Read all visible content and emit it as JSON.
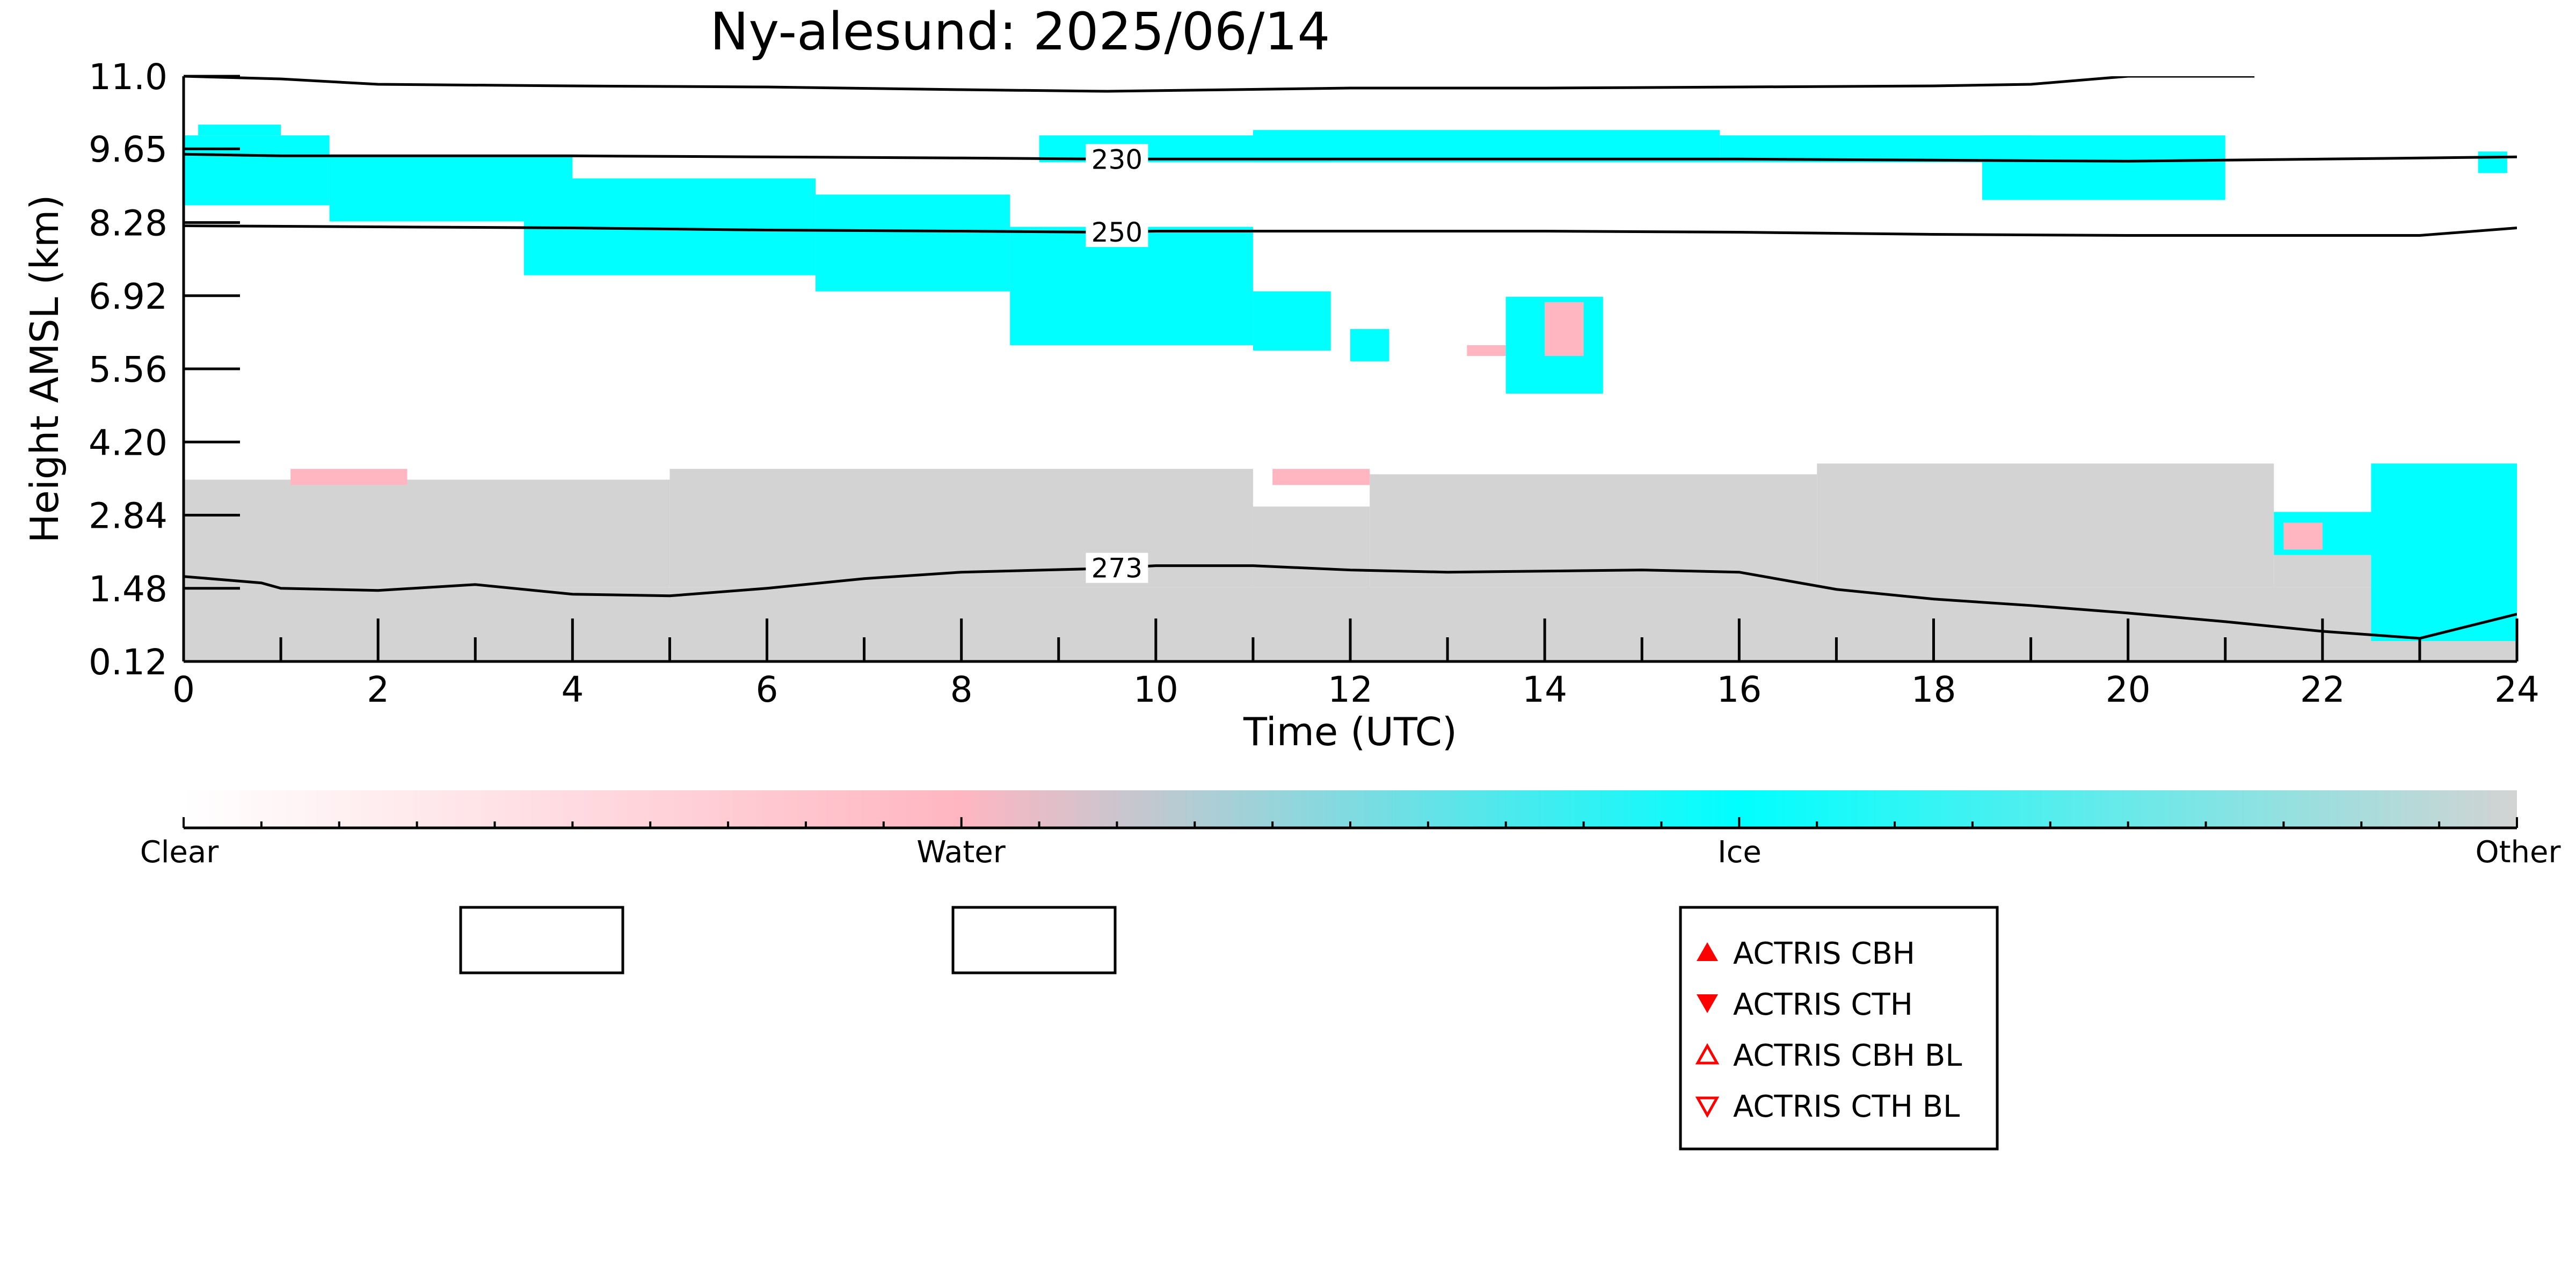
{
  "chart_data": {
    "type": "heatmap",
    "title": "Ny-alesund: 2025/06/14",
    "xlabel": "Time (UTC)",
    "ylabel": "Height AMSL (km)",
    "xlim": [
      0,
      24
    ],
    "ylim": [
      0.12,
      11.0
    ],
    "x_ticks": [
      "0",
      "2",
      "4",
      "6",
      "8",
      "10",
      "12",
      "14",
      "16",
      "18",
      "20",
      "22",
      "24"
    ],
    "y_ticks": [
      "0.12",
      "1.48",
      "2.84",
      "4.20",
      "5.56",
      "6.92",
      "8.28",
      "9.65",
      "11.0"
    ],
    "colorbar": {
      "labels": [
        "Clear",
        "Water",
        "Ice",
        "Other"
      ],
      "colors": [
        "#ffffff",
        "#ffb6c1",
        "#00ffff",
        "#d3d3d3"
      ]
    },
    "class_colors": {
      "clear": "#ffffff",
      "water": "#ffb6c1",
      "ice": "#00ffff",
      "other": "#d3d3d3"
    },
    "isotherms": [
      {
        "label": "230",
        "x": [
          0,
          1,
          2,
          4,
          6,
          8,
          9.5,
          10,
          12,
          14,
          16,
          18,
          20,
          22,
          24
        ],
        "y": [
          9.55,
          9.52,
          9.52,
          9.52,
          9.5,
          9.48,
          9.46,
          9.46,
          9.46,
          9.46,
          9.46,
          9.44,
          9.42,
          9.46,
          9.5
        ]
      },
      {
        "label": "250",
        "x": [
          0,
          2,
          4,
          6,
          8,
          9.5,
          10,
          12,
          14,
          16,
          18,
          20,
          22,
          23,
          24
        ],
        "y": [
          8.22,
          8.2,
          8.18,
          8.14,
          8.12,
          8.1,
          8.12,
          8.12,
          8.12,
          8.1,
          8.06,
          8.04,
          8.04,
          8.04,
          8.18
        ]
      },
      {
        "label": "273",
        "x": [
          0,
          0.8,
          1,
          2,
          3,
          4,
          5,
          6,
          7,
          8,
          9.5,
          10,
          11,
          12,
          13,
          14,
          15,
          16,
          17,
          18,
          19,
          20,
          21,
          22,
          23,
          24
        ],
        "y": [
          1.7,
          1.58,
          1.48,
          1.44,
          1.55,
          1.37,
          1.34,
          1.48,
          1.66,
          1.78,
          1.85,
          1.9,
          1.9,
          1.82,
          1.78,
          1.8,
          1.82,
          1.78,
          1.46,
          1.28,
          1.16,
          1.02,
          0.86,
          0.68,
          0.55,
          1.0
        ]
      },
      {
        "label": "",
        "x": [
          0,
          1,
          2,
          4,
          6,
          8,
          9.5,
          12,
          14,
          16,
          18,
          19,
          20,
          21,
          21.3
        ],
        "y": [
          11.0,
          10.95,
          10.85,
          10.82,
          10.8,
          10.75,
          10.72,
          10.78,
          10.78,
          10.8,
          10.82,
          10.85,
          11.0,
          11.0,
          11.0
        ]
      }
    ],
    "regions": [
      {
        "cls": "other",
        "x": [
          0,
          24
        ],
        "y": [
          0.12,
          1.5
        ]
      },
      {
        "cls": "other",
        "x": [
          0,
          5
        ],
        "y": [
          1.5,
          3.5
        ]
      },
      {
        "cls": "other",
        "x": [
          5,
          11
        ],
        "y": [
          1.5,
          3.7
        ]
      },
      {
        "cls": "other",
        "x": [
          11,
          12.2
        ],
        "y": [
          1.5,
          3.0
        ]
      },
      {
        "cls": "other",
        "x": [
          12.2,
          16.8
        ],
        "y": [
          1.5,
          3.6
        ]
      },
      {
        "cls": "other",
        "x": [
          16.8,
          21.5
        ],
        "y": [
          1.5,
          3.8
        ]
      },
      {
        "cls": "other",
        "x": [
          21.5,
          22.5
        ],
        "y": [
          1.5,
          2.6
        ]
      },
      {
        "cls": "water",
        "x": [
          1.1,
          2.3
        ],
        "y": [
          3.4,
          3.7
        ]
      },
      {
        "cls": "water",
        "x": [
          11.2,
          12.2
        ],
        "y": [
          3.4,
          3.7
        ]
      },
      {
        "cls": "ice",
        "x": [
          0,
          1.5
        ],
        "y": [
          8.6,
          9.9
        ]
      },
      {
        "cls": "ice",
        "x": [
          0.15,
          1.0
        ],
        "y": [
          9.9,
          10.1
        ]
      },
      {
        "cls": "ice",
        "x": [
          1.5,
          4.0
        ],
        "y": [
          8.3,
          9.5
        ]
      },
      {
        "cls": "ice",
        "x": [
          3.5,
          6.5
        ],
        "y": [
          7.3,
          9.1
        ]
      },
      {
        "cls": "ice",
        "x": [
          6.5,
          8.5
        ],
        "y": [
          7.0,
          8.8
        ]
      },
      {
        "cls": "ice",
        "x": [
          8.5,
          11.0
        ],
        "y": [
          6.0,
          8.2
        ]
      },
      {
        "cls": "ice",
        "x": [
          11.0,
          11.8
        ],
        "y": [
          5.9,
          7.0
        ]
      },
      {
        "cls": "ice",
        "x": [
          12.0,
          12.4
        ],
        "y": [
          5.7,
          6.3
        ]
      },
      {
        "cls": "water",
        "x": [
          13.2,
          14.0
        ],
        "y": [
          5.8,
          6.0
        ]
      },
      {
        "cls": "ice",
        "x": [
          13.6,
          14.6
        ],
        "y": [
          5.1,
          6.9
        ]
      },
      {
        "cls": "water",
        "x": [
          14.0,
          14.4
        ],
        "y": [
          5.8,
          6.8
        ]
      },
      {
        "cls": "ice",
        "x": [
          8.8,
          11.8
        ],
        "y": [
          9.4,
          9.9
        ]
      },
      {
        "cls": "ice",
        "x": [
          11.0,
          15.8
        ],
        "y": [
          9.4,
          10.0
        ]
      },
      {
        "cls": "ice",
        "x": [
          15.8,
          19.0
        ],
        "y": [
          9.4,
          9.9
        ]
      },
      {
        "cls": "ice",
        "x": [
          18.5,
          21.0
        ],
        "y": [
          8.7,
          9.9
        ]
      },
      {
        "cls": "ice",
        "x": [
          23.6,
          23.9
        ],
        "y": [
          9.2,
          9.6
        ]
      },
      {
        "cls": "ice",
        "x": [
          21.5,
          22.6
        ],
        "y": [
          2.1,
          2.9
        ]
      },
      {
        "cls": "water",
        "x": [
          21.6,
          22.0
        ],
        "y": [
          2.2,
          2.7
        ]
      },
      {
        "cls": "ice",
        "x": [
          22.5,
          24
        ],
        "y": [
          0.5,
          3.8
        ]
      }
    ],
    "legend": {
      "placement": "bottom-right",
      "entries": [
        "ACTRIS CBH",
        "ACTRIS CTH",
        "ACTRIS CBH BL",
        "ACTRIS CTH BL"
      ],
      "marker_color": "#ff0000"
    },
    "grid": false
  }
}
